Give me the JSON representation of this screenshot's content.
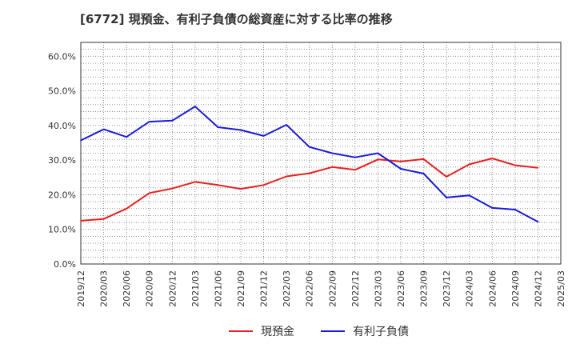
{
  "chart_data": {
    "type": "line",
    "title": "[6772]  現預金、有利子負債の総資産に対する比率の推移",
    "categories": [
      "2019/12",
      "2020/03",
      "2020/06",
      "2020/09",
      "2020/12",
      "2021/03",
      "2021/06",
      "2021/09",
      "2021/12",
      "2022/03",
      "2022/06",
      "2022/09",
      "2022/12",
      "2023/03",
      "2023/06",
      "2023/09",
      "2023/12",
      "2024/03",
      "2024/06",
      "2024/09",
      "2024/12",
      "2025/03"
    ],
    "y_ticks": [
      "0.0%",
      "10.0%",
      "20.0%",
      "30.0%",
      "40.0%",
      "50.0%",
      "60.0%"
    ],
    "ylim": [
      0,
      0.64
    ],
    "grid": true,
    "legend_position": "bottom",
    "series": [
      {
        "name": "現預金",
        "color": "#e8201f",
        "values": [
          0.125,
          0.13,
          0.16,
          0.205,
          0.218,
          0.237,
          0.228,
          0.217,
          0.228,
          0.253,
          0.262,
          0.28,
          0.272,
          0.302,
          0.296,
          0.303,
          0.252,
          0.288,
          0.305,
          0.285,
          0.278,
          null
        ]
      },
      {
        "name": "有利子負債",
        "color": "#1a1adc",
        "values": [
          0.357,
          0.389,
          0.367,
          0.411,
          0.414,
          0.455,
          0.395,
          0.387,
          0.37,
          0.402,
          0.338,
          0.32,
          0.308,
          0.32,
          0.275,
          0.261,
          0.192,
          0.198,
          0.162,
          0.157,
          0.122,
          null
        ]
      }
    ]
  }
}
